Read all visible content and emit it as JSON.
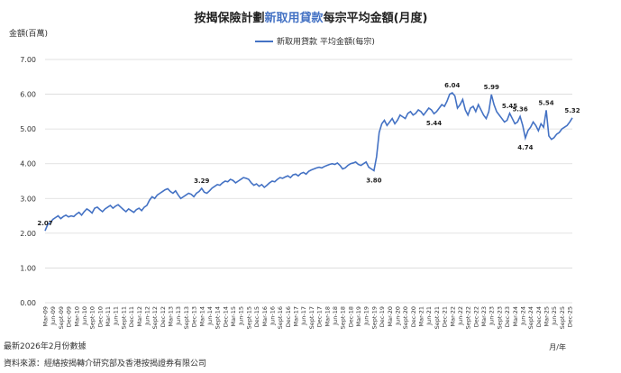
{
  "chart_data": {
    "type": "line",
    "title": [
      "按揭保險計劃",
      "新取用貸款",
      "每宗平均金額(月度)"
    ],
    "y_label": "金額(百萬)",
    "x_label": "月/年",
    "notes": [
      "最新2026年2月份數據",
      "資料來源：經絡按揭轉介研究部及香港按揭證券有限公司"
    ],
    "grid": true,
    "ylim": [
      0,
      7
    ],
    "yticks": [
      {
        "value": 0,
        "label": "0.00"
      },
      {
        "value": 1,
        "label": "1.00"
      },
      {
        "value": 2,
        "label": "2.00"
      },
      {
        "value": 3,
        "label": "3.00"
      },
      {
        "value": 4,
        "label": "4.00"
      },
      {
        "value": 5,
        "label": "5.00"
      },
      {
        "value": 6,
        "label": "6.00"
      },
      {
        "value": 7,
        "label": "7.00"
      }
    ],
    "categories": [
      "Mar-09",
      null,
      null,
      "Jun-09",
      null,
      null,
      "Sept-09",
      null,
      null,
      "Dec-09",
      null,
      null,
      "Mar-10",
      null,
      null,
      "Jun-10",
      null,
      null,
      "Sept-10",
      null,
      null,
      "Dec-10",
      null,
      null,
      "Mar-11",
      null,
      null,
      "Jun-11",
      null,
      null,
      "Sept-11",
      null,
      null,
      "Dec-11",
      null,
      null,
      "Mar-12",
      null,
      null,
      "Jun-12",
      null,
      null,
      "Sept-12",
      null,
      null,
      "Dec-12",
      null,
      null,
      "Mar-13",
      null,
      null,
      "Jun-13",
      null,
      null,
      "Sept-13",
      null,
      null,
      "Dec-13",
      null,
      null,
      "Mar-14",
      null,
      null,
      "Jun-14",
      null,
      null,
      "Sept-14",
      null,
      null,
      "Dec-14",
      null,
      null,
      "Mar-15",
      null,
      null,
      "Jun-15",
      null,
      null,
      "Sept-15",
      null,
      null,
      "Dec-15",
      null,
      null,
      "Mar-16",
      null,
      null,
      "Jun-16",
      null,
      null,
      "Sept-16",
      null,
      null,
      "Dec-16",
      null,
      null,
      "Mar-17",
      null,
      null,
      "Jun-17",
      null,
      null,
      "Sept-17",
      null,
      null,
      "Dec-17",
      null,
      null,
      "Mar-18",
      null,
      null,
      "Jun-18",
      null,
      null,
      "Sept-18",
      null,
      null,
      "Dec-18",
      null,
      null,
      "Mar-19",
      null,
      null,
      "Jun-19",
      null,
      null,
      "Sept-19",
      null,
      null,
      "Dec-19",
      null,
      null,
      "Mar-20",
      null,
      null,
      "Jun-20",
      null,
      null,
      "Sept-20",
      null,
      null,
      "Dec-20",
      null,
      null,
      "Mar-21",
      null,
      null,
      "Jun-21",
      null,
      null,
      "Sept-21",
      null,
      null,
      "Dec-21",
      null,
      null,
      "Mar-22",
      null,
      null,
      "Jun-22",
      null,
      null,
      "Sept-22",
      null,
      null,
      "Dec-22",
      null,
      null,
      "Mar-23",
      null,
      null,
      "Jun-23",
      null,
      null,
      "Sept-23",
      null,
      null,
      "Dec-23",
      null,
      null,
      "Mar-24",
      null,
      null,
      "Jun-24",
      null,
      null,
      "Sept-24",
      null,
      null,
      "Dec-24",
      null,
      null,
      "Mar-25",
      null,
      null,
      "Jun-25",
      null,
      null,
      "Sept-25",
      null,
      null,
      "Dec-25",
      null
    ],
    "series": [
      {
        "name": "新取用貸款 平均金額(每宗)",
        "color": "#4472c4",
        "values": [
          2.07,
          2.25,
          2.3,
          2.4,
          2.45,
          2.5,
          2.42,
          2.48,
          2.52,
          2.47,
          2.5,
          2.48,
          2.55,
          2.6,
          2.52,
          2.62,
          2.7,
          2.65,
          2.58,
          2.72,
          2.75,
          2.68,
          2.62,
          2.7,
          2.75,
          2.8,
          2.72,
          2.78,
          2.82,
          2.75,
          2.68,
          2.62,
          2.7,
          2.65,
          2.6,
          2.68,
          2.72,
          2.65,
          2.75,
          2.8,
          2.95,
          3.05,
          3.0,
          3.1,
          3.15,
          3.2,
          3.25,
          3.28,
          3.2,
          3.15,
          3.22,
          3.1,
          3.0,
          3.05,
          3.1,
          3.15,
          3.12,
          3.05,
          3.15,
          3.2,
          3.29,
          3.18,
          3.15,
          3.22,
          3.3,
          3.35,
          3.4,
          3.38,
          3.45,
          3.5,
          3.48,
          3.55,
          3.52,
          3.45,
          3.5,
          3.55,
          3.6,
          3.58,
          3.55,
          3.45,
          3.38,
          3.42,
          3.35,
          3.4,
          3.32,
          3.38,
          3.45,
          3.5,
          3.48,
          3.55,
          3.6,
          3.58,
          3.62,
          3.65,
          3.6,
          3.68,
          3.7,
          3.65,
          3.72,
          3.75,
          3.7,
          3.78,
          3.82,
          3.85,
          3.88,
          3.9,
          3.88,
          3.92,
          3.95,
          3.98,
          4.0,
          3.98,
          4.02,
          3.95,
          3.85,
          3.88,
          3.95,
          4.0,
          4.02,
          4.05,
          3.98,
          3.95,
          4.0,
          4.05,
          3.9,
          3.85,
          3.8,
          4.2,
          4.9,
          5.15,
          5.25,
          5.1,
          5.2,
          5.3,
          5.15,
          5.25,
          5.4,
          5.35,
          5.3,
          5.45,
          5.5,
          5.4,
          5.45,
          5.55,
          5.5,
          5.4,
          5.5,
          5.6,
          5.55,
          5.44,
          5.5,
          5.6,
          5.7,
          5.65,
          5.8,
          6.0,
          6.04,
          5.95,
          5.6,
          5.7,
          5.85,
          5.55,
          5.4,
          5.6,
          5.65,
          5.5,
          5.7,
          5.55,
          5.4,
          5.3,
          5.5,
          5.99,
          5.7,
          5.5,
          5.4,
          5.3,
          5.2,
          5.25,
          5.45,
          5.3,
          5.15,
          5.2,
          5.36,
          5.1,
          4.74,
          4.95,
          5.05,
          5.2,
          5.1,
          4.95,
          5.15,
          5.05,
          5.54,
          4.8,
          4.7,
          4.75,
          4.85,
          4.9,
          5.0,
          5.05,
          5.1,
          5.2,
          5.32
        ],
        "value_labels": [
          "2.07",
          null,
          null,
          null,
          null,
          null,
          null,
          null,
          null,
          null,
          null,
          null,
          null,
          null,
          null,
          null,
          null,
          null,
          null,
          null,
          null,
          null,
          null,
          null,
          null,
          null,
          null,
          null,
          null,
          null,
          null,
          null,
          null,
          null,
          null,
          null,
          null,
          null,
          null,
          null,
          null,
          null,
          null,
          null,
          null,
          null,
          null,
          null,
          null,
          null,
          null,
          null,
          null,
          null,
          null,
          null,
          null,
          null,
          null,
          null,
          "3.29",
          null,
          null,
          null,
          null,
          null,
          null,
          null,
          null,
          null,
          null,
          null,
          null,
          null,
          null,
          null,
          null,
          null,
          null,
          null,
          null,
          null,
          null,
          null,
          null,
          null,
          null,
          null,
          null,
          null,
          null,
          null,
          null,
          null,
          null,
          null,
          null,
          null,
          null,
          null,
          null,
          null,
          null,
          null,
          null,
          null,
          null,
          null,
          null,
          null,
          null,
          null,
          null,
          null,
          null,
          null,
          null,
          null,
          null,
          null,
          null,
          null,
          null,
          null,
          null,
          null,
          "3.80",
          null,
          null,
          null,
          null,
          null,
          null,
          null,
          null,
          null,
          null,
          null,
          null,
          null,
          null,
          null,
          null,
          null,
          null,
          null,
          null,
          null,
          null,
          "5.44",
          null,
          null,
          null,
          null,
          null,
          null,
          "6.04",
          null,
          null,
          null,
          null,
          null,
          null,
          null,
          null,
          null,
          null,
          null,
          null,
          null,
          null,
          "5.99",
          null,
          null,
          null,
          null,
          null,
          null,
          "5.45",
          null,
          null,
          null,
          "5.36",
          null,
          "4.74",
          null,
          null,
          null,
          null,
          null,
          null,
          null,
          "5.54",
          null,
          null,
          null,
          null,
          null,
          null,
          null,
          null,
          null,
          "5.32"
        ]
      }
    ]
  }
}
